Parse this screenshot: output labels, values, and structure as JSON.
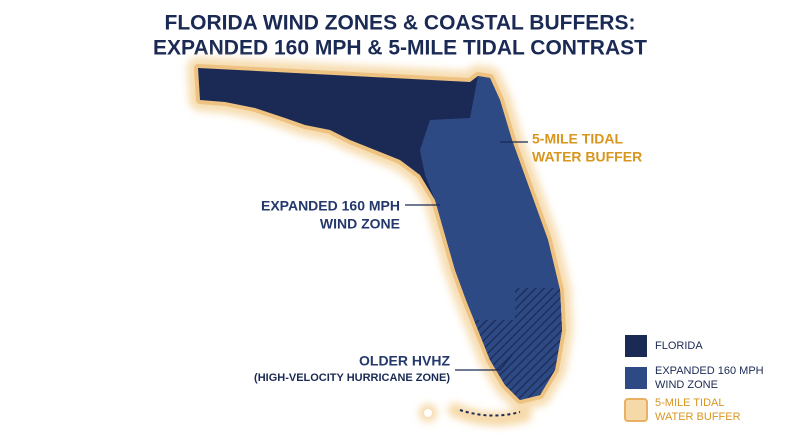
{
  "title": [
    "FLORIDA WIND ZONES & COASTAL BUFFERS:",
    "EXPANDED 160 MPH & 5-MILE TIDAL CONTRAST"
  ],
  "annotations": {
    "buffer": [
      "5-MILE TIDAL",
      "WATER BUFFER"
    ],
    "wind_zone": [
      "EXPANDED 160 MPH",
      "WIND ZONE"
    ],
    "hvhz": [
      "OLDER HVHZ",
      "(HIGH-VELOCITY HURRICANE ZONE)"
    ]
  },
  "legend": [
    {
      "label": [
        "FLORIDA"
      ],
      "color": "#1b2a55"
    },
    {
      "label": [
        "EXPANDED 160 MPH",
        "WIND ZONE"
      ],
      "color": "#2e4a85"
    },
    {
      "label": [
        "5-MILE TIDAL",
        "WATER BUFFER"
      ],
      "color": "#f6d9a8"
    }
  ]
}
